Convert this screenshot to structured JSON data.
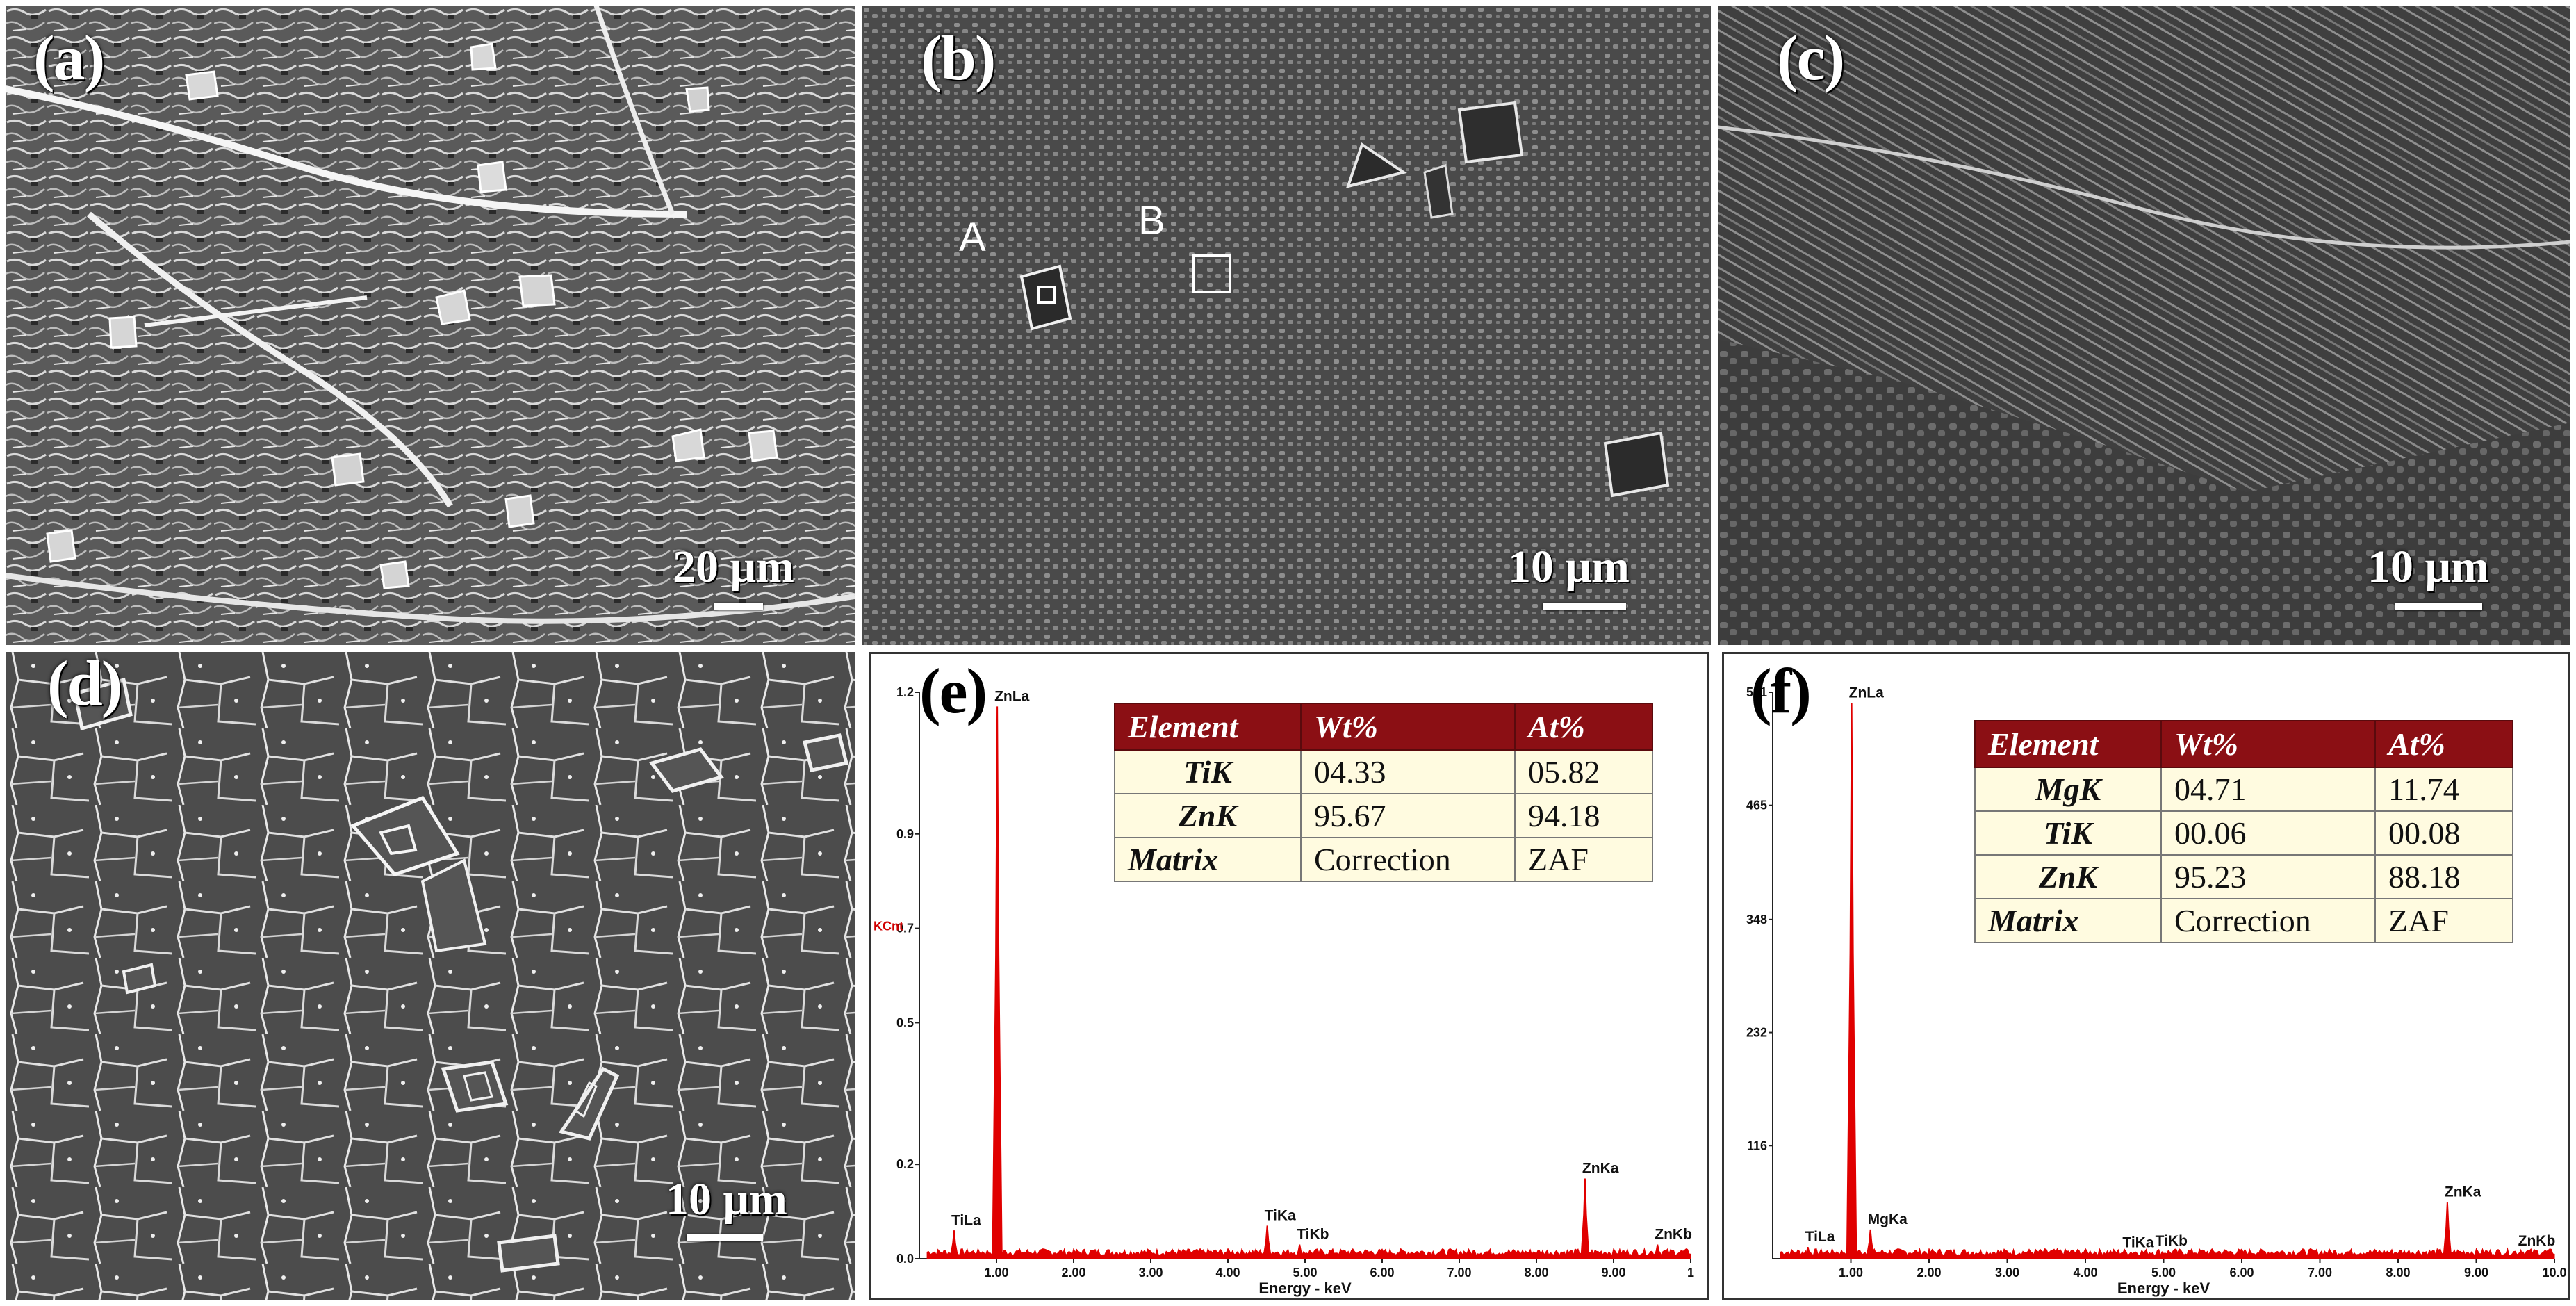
{
  "panels": {
    "a": {
      "label": "(a)",
      "scale": "20 μm"
    },
    "b": {
      "label": "(b)",
      "scale": "10 μm",
      "roi_a": "A",
      "roi_b": "B"
    },
    "c": {
      "label": "(c)",
      "scale": "10 μm"
    },
    "d": {
      "label": "(d)",
      "scale": "10 μm"
    },
    "e": {
      "label": "(e)"
    },
    "f": {
      "label": "(f)"
    }
  },
  "chart_data": [
    {
      "type": "line",
      "panel": "e",
      "xlabel": "Energy - keV",
      "ylabel": "KCnt",
      "xlim": [
        0,
        10
      ],
      "ylim": [
        0,
        1.2
      ],
      "x_ticks": [
        "1.00",
        "2.00",
        "3.00",
        "4.00",
        "5.00",
        "6.00",
        "7.00",
        "8.00",
        "9.00",
        "1"
      ],
      "y_ticks": [
        "0.0",
        "0.2",
        "0.5",
        "0.7",
        "0.9",
        "1.2"
      ],
      "peaks": [
        {
          "label": "TiLa",
          "x": 0.45,
          "y": 0.06
        },
        {
          "label": "ZnLa",
          "x": 1.01,
          "y": 1.17
        },
        {
          "label": "TiKa",
          "x": 4.51,
          "y": 0.07
        },
        {
          "label": "TiKb",
          "x": 4.93,
          "y": 0.03
        },
        {
          "label": "ZnKa",
          "x": 8.63,
          "y": 0.17
        },
        {
          "label": "ZnKb",
          "x": 9.57,
          "y": 0.03
        }
      ],
      "table": {
        "headers": [
          "Element",
          "Wt%",
          "At%"
        ],
        "rows": [
          [
            "TiK",
            "04.33",
            "05.82"
          ],
          [
            "ZnK",
            "95.67",
            "94.18"
          ],
          [
            "Matrix",
            "Correction",
            "ZAF"
          ]
        ]
      }
    },
    {
      "type": "line",
      "panel": "f",
      "xlabel": "Energy - keV",
      "xlim": [
        0,
        10
      ],
      "ylim": [
        0,
        581
      ],
      "x_ticks": [
        "1.00",
        "2.00",
        "3.00",
        "4.00",
        "5.00",
        "6.00",
        "7.00",
        "8.00",
        "9.00",
        "10.0"
      ],
      "y_ticks": [
        "116",
        "232",
        "348",
        "465",
        "581"
      ],
      "peaks": [
        {
          "label": "TiLa",
          "x": 0.45,
          "y": 12
        },
        {
          "label": "ZnLa",
          "x": 1.01,
          "y": 570
        },
        {
          "label": "MgKa",
          "x": 1.25,
          "y": 30
        },
        {
          "label": "TiKa",
          "x": 4.51,
          "y": 6
        },
        {
          "label": "TiKb",
          "x": 4.93,
          "y": 8
        },
        {
          "label": "ZnKa",
          "x": 8.63,
          "y": 58
        },
        {
          "label": "ZnKb",
          "x": 9.57,
          "y": 8
        }
      ],
      "table": {
        "headers": [
          "Element",
          "Wt%",
          "At%"
        ],
        "rows": [
          [
            "MgK",
            "04.71",
            "11.74"
          ],
          [
            "TiK",
            "00.06",
            "00.08"
          ],
          [
            "ZnK",
            "95.23",
            "88.18"
          ],
          [
            "Matrix",
            "Correction",
            "ZAF"
          ]
        ]
      }
    }
  ]
}
